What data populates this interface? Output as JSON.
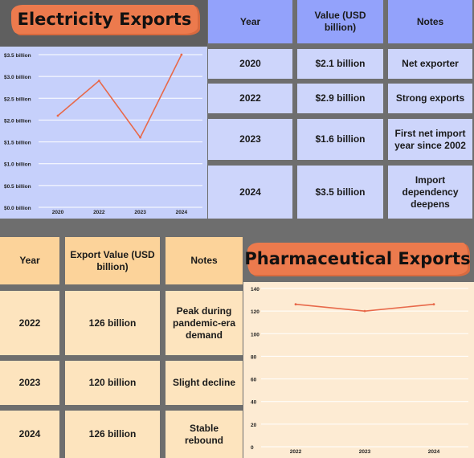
{
  "electricity": {
    "title": "Electricity Exports",
    "table": {
      "headers": [
        "Year",
        "Value (USD billion)",
        "Notes"
      ],
      "rows": [
        [
          "2020",
          "$2.1 billion",
          "Net exporter"
        ],
        [
          "2022",
          "$2.9 billion",
          "Strong exports"
        ],
        [
          "2023",
          "$1.6 billion",
          "First net import year since 2002"
        ],
        [
          "2024",
          "$3.5 billion",
          "Import dependency deepens"
        ]
      ]
    }
  },
  "pharma": {
    "title": "Pharmaceutical Exports",
    "table": {
      "headers": [
        "Year",
        "Export Value (USD billion)",
        "Notes"
      ],
      "rows": [
        [
          "2022",
          "126 billion",
          "Peak during pandemic-era demand"
        ],
        [
          "2023",
          "120 billion",
          "Slight decline"
        ],
        [
          "2024",
          "126 billion",
          "Stable rebound"
        ]
      ]
    }
  },
  "colors": {
    "line": "#e8694a",
    "grid": "#ffffff",
    "blue_header": "#93a2fb",
    "blue_cell": "#cdd5fb",
    "orange_header": "#fcd39a",
    "orange_cell": "#fde4be",
    "brush": "#ec7a4d"
  },
  "chart_data": [
    {
      "type": "line",
      "categories": [
        "2020",
        "2022",
        "2023",
        "2024"
      ],
      "values": [
        2.1,
        2.9,
        1.6,
        3.5
      ],
      "ylim": [
        0,
        3.5
      ],
      "yticks": [
        0,
        0.5,
        1.0,
        1.5,
        2.0,
        2.5,
        3.0,
        3.5
      ],
      "ytick_labels": [
        "$0.0 billion",
        "$0.5 billion",
        "$1.0 billion",
        "$1.5 billion",
        "$2.0 billion",
        "$2.5 billion",
        "$3.0 billion",
        "$3.5 billion"
      ],
      "grid": true
    },
    {
      "type": "line",
      "categories": [
        "2022",
        "2023",
        "2024"
      ],
      "values": [
        126,
        120,
        126
      ],
      "ylim": [
        0,
        140
      ],
      "yticks": [
        0,
        20,
        40,
        60,
        80,
        100,
        120,
        140
      ],
      "ytick_labels": [
        "0",
        "20",
        "40",
        "60",
        "80",
        "100",
        "120",
        "140"
      ],
      "grid": true
    }
  ]
}
